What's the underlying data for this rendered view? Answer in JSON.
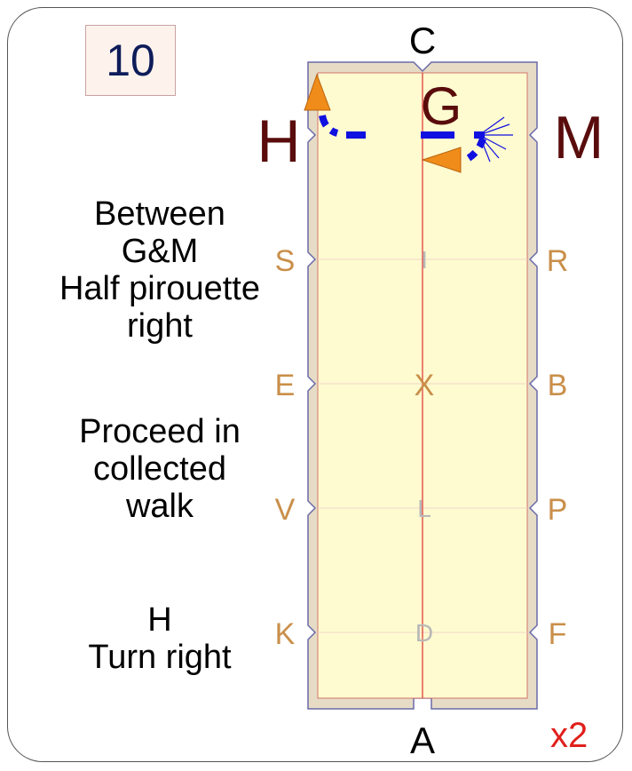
{
  "exercise_number": "10",
  "instructions": [
    {
      "lines": [
        "Between",
        "G&M",
        "Half pirouette",
        "right"
      ]
    },
    {
      "lines": [
        "Proceed in",
        "collected",
        "walk"
      ]
    },
    {
      "lines": [
        "H",
        "Turn right"
      ]
    }
  ],
  "arena_letters": {
    "top": "C",
    "bottom": "A",
    "left": [
      "H",
      "S",
      "E",
      "V",
      "K"
    ],
    "right": [
      "M",
      "R",
      "B",
      "P",
      "F"
    ],
    "centerline": [
      "G",
      "I",
      "X",
      "L",
      "D"
    ]
  },
  "repeat_label": "x2",
  "colors": {
    "arena_fill": "#fefbd0",
    "arena_border": "#e6dcc6",
    "side_letters": "#c98f4a",
    "corner_letters": "#5a0c0c",
    "centerline": "#e0403a",
    "path": "#1010e0",
    "arrow": "#f08c1a",
    "repeat": "#e0201c"
  }
}
